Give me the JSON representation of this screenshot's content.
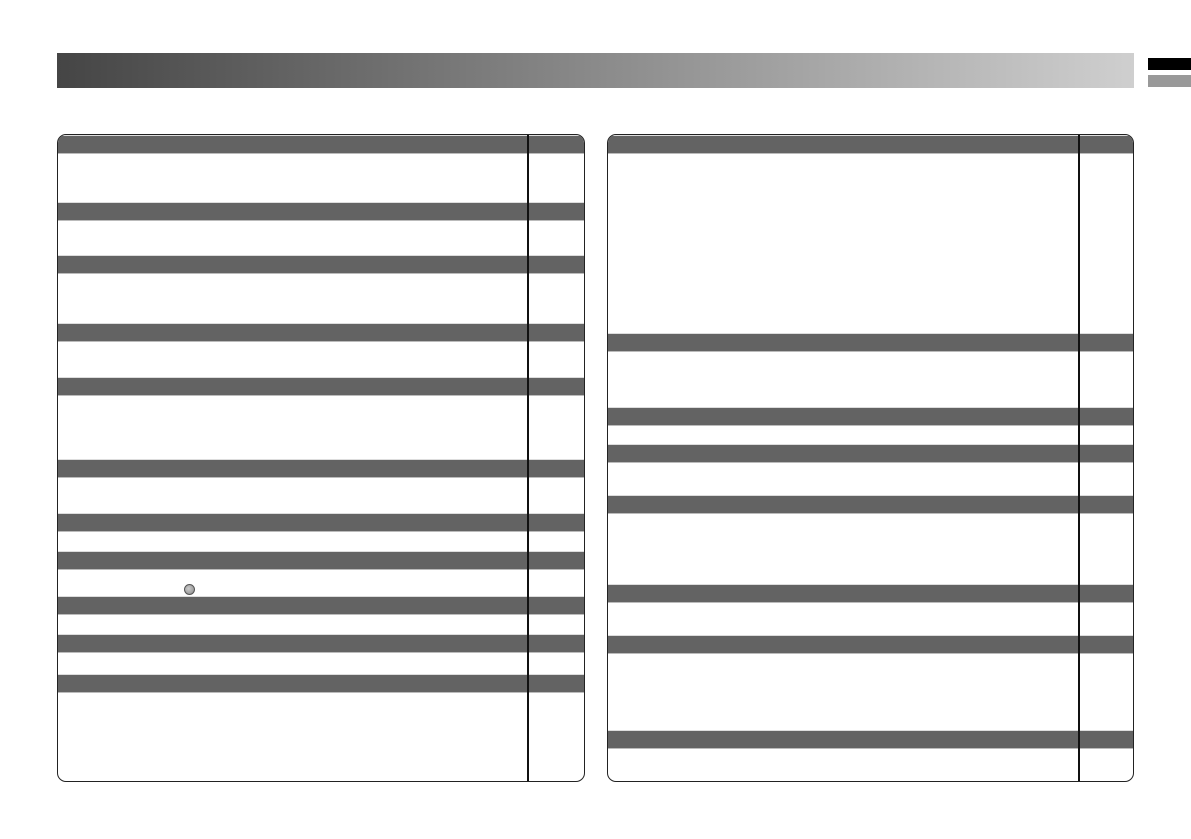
{
  "colors": {
    "header_bar_start": "#454545",
    "header_bar_end": "#cfcfcf",
    "section_bar": "#636363",
    "tab_active": "#000000",
    "tab_inactive": "#999999"
  },
  "icons": {
    "left_panel_marker": "gray-circle-icon"
  }
}
